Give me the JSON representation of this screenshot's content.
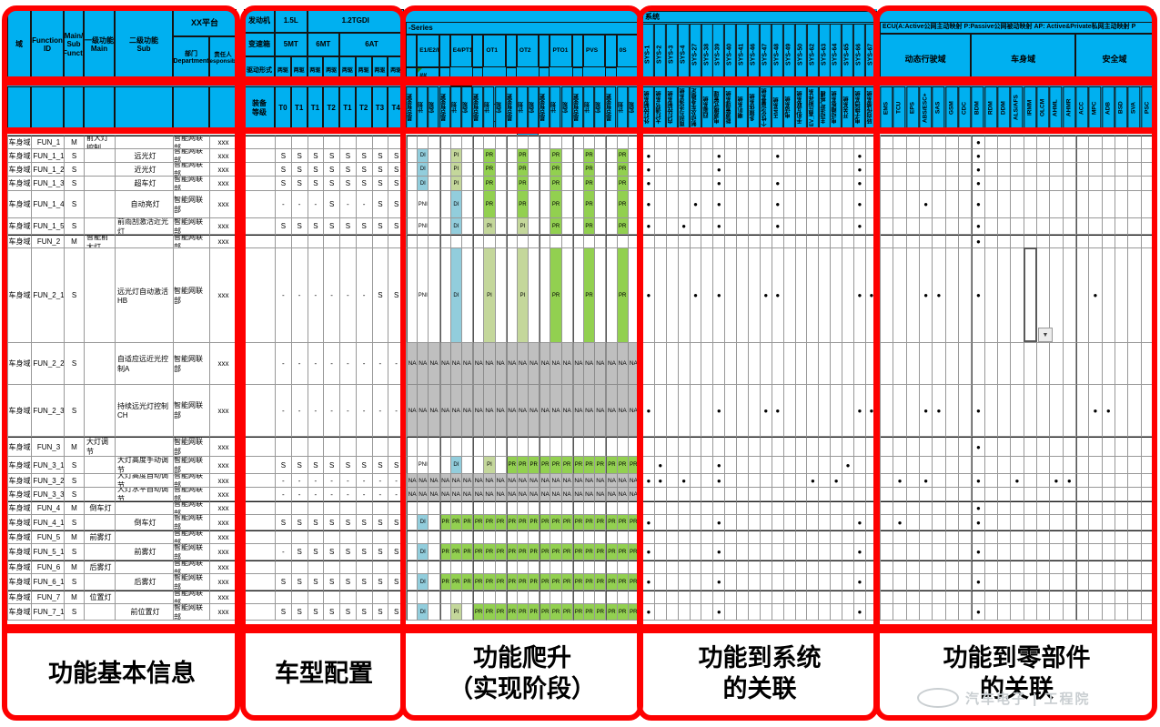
{
  "colors": {
    "header_blue": "#00B0F0",
    "frame_red": "#FE0000",
    "stage_di": "#92CDDC",
    "stage_pi": "#C4D79B",
    "stage_pr": "#92D050",
    "na_gray": "#BFBFBF"
  },
  "bottom_labels": [
    "功能基本信息",
    "车型配置",
    "功能爬升\n（实现阶段）",
    "功能到系统\n的关联",
    "功能到零部件\n的关联"
  ],
  "watermark": {
    "text": "汽车电子 | 工程院"
  },
  "defaults": {
    "domain": "车身域",
    "dept": "智能网联部",
    "resp": "xxx"
  },
  "sec1": {
    "headers": {
      "domain": "域",
      "function_id": "Function\nID",
      "main_sub": "Main/\nSub\nFuncti",
      "main": "一级功能\nMain",
      "sub": "二级功能\nSub",
      "platform": "XX平台",
      "dept": "部门\nDepartment",
      "resp": "责任人\nResponsible"
    }
  },
  "sec2": {
    "engine_label": "发动机",
    "engines": [
      {
        "label": "1.5L",
        "span": 2
      },
      {
        "label": "1.2TGDI",
        "span": 6
      }
    ],
    "trans_label": "变速箱",
    "trans": [
      {
        "label": "5MT",
        "span": 2
      },
      {
        "label": "6MT",
        "span": 2
      },
      {
        "label": "6AT",
        "span": 4
      }
    ],
    "drive_label": "驱动形式",
    "drives": [
      "两驱",
      "两驱",
      "两驱",
      "两驱",
      "两驱",
      "两驱",
      "两驱",
      "两驱"
    ],
    "level_label": "装备\n等级",
    "levels": [
      "T0",
      "T1",
      "T1",
      "T2",
      "T1",
      "T2",
      "T3",
      "T4"
    ]
  },
  "sec3": {
    "series": "-Series",
    "models": [
      "E1/E2/E3",
      "E4/PT1",
      "OT1",
      "OT2",
      "PTO1",
      "PVS",
      "0S"
    ],
    "hash": [
      "##",
      "##",
      "#",
      "##",
      "##",
      "##",
      "##"
    ],
    "subcols": [
      "是否有变更",
      "计划",
      "实现"
    ]
  },
  "sec4": {
    "title": "系统",
    "systems": [
      {
        "id": "SYS-1",
        "name": "外灯控制系统"
      },
      {
        "id": "SYS-2",
        "name": "大灯调节系统"
      },
      {
        "id": "SYS-3",
        "name": "内灯控制系统"
      },
      {
        "id": "SYS-4",
        "name": "雨刮与洗涤系统"
      },
      {
        "id": "SYS-27",
        "name": "制动及车身稳定"
      },
      {
        "id": "SYS-38",
        "name": "四驱系统"
      },
      {
        "id": "SYS-39",
        "name": "电源模式管理"
      },
      {
        "id": "SYS-40",
        "name": "能源管理系统"
      },
      {
        "id": "SYS-41",
        "name": "喇叭系统"
      },
      {
        "id": "SYS-46",
        "name": "多媒体系统"
      },
      {
        "id": "SYS-47",
        "name": "个性化设置系统"
      },
      {
        "id": "SYS-48",
        "name": "HMI系统"
      },
      {
        "id": "SYS-49",
        "name": "电话系统"
      },
      {
        "id": "SYS-50",
        "name": "手机互联系统"
      },
      {
        "id": "SYS-62",
        "name": "EV_高压附件系"
      },
      {
        "id": "SYS-63",
        "name": "主动进气格栅"
      },
      {
        "id": "SYS-64",
        "name": "电动踏板系统"
      },
      {
        "id": "SYS-65",
        "name": "开关系统"
      },
      {
        "id": "SYS-66",
        "name": "电子换挡系统"
      },
      {
        "id": "SYS-67",
        "name": "转向传感系统"
      }
    ]
  },
  "sec5": {
    "title": "ECU(A:Active公网主动映射  P:Passive公网被动映射   AP: Active&Private私网主动映射  P",
    "domains": [
      {
        "label": "动态行驶域",
        "ecus": [
          "EMS",
          "TCU",
          "EPS",
          "ABS/ESC+",
          "SAS",
          "GSM",
          "CDC"
        ]
      },
      {
        "label": "车身域",
        "ecus": [
          "BDM",
          "RDM",
          "DDM",
          "ALS/AFS",
          "IRMM",
          "OLCM",
          "AHML",
          "AHMR"
        ]
      },
      {
        "label": "安全域",
        "ecus": [
          "ACC",
          "MPC",
          "ADB",
          "BSD",
          "SVA",
          "PSC"
        ]
      }
    ]
  },
  "selection": {
    "row_id": "FUN_2_1",
    "ecu": "IRMM"
  },
  "rows": [
    {
      "id": "FUN_1",
      "ms": "M",
      "main": "前大灯控制",
      "sub": "",
      "cfg": [
        "",
        "",
        "",
        "",
        "",
        "",
        "",
        ""
      ],
      "st": [
        "",
        "",
        "",
        "",
        "",
        "",
        "",
        "",
        "",
        "",
        "",
        "",
        "",
        "",
        "",
        "",
        "",
        "",
        "",
        "",
        ""
      ],
      "sys": [],
      "ecu": [
        "BDM"
      ]
    },
    {
      "id": "FUN_1_1",
      "ms": "S",
      "main": "",
      "sub": "远光灯",
      "cfg": [
        "S",
        "S",
        "S",
        "S",
        "S",
        "S",
        "S",
        "S"
      ],
      "st": [
        "",
        "DI",
        "",
        "",
        "PI",
        "",
        "",
        "PR",
        "",
        "",
        "PR",
        "",
        "",
        "PR",
        "",
        "",
        "PR",
        "",
        "",
        "PR",
        ""
      ],
      "sys": [
        "SYS-1",
        "SYS-39",
        "SYS-48",
        "SYS-66"
      ],
      "ecu": [
        "BDM"
      ]
    },
    {
      "id": "FUN_1_2",
      "ms": "S",
      "main": "",
      "sub": "近光灯",
      "cfg": [
        "S",
        "S",
        "S",
        "S",
        "S",
        "S",
        "S",
        "S"
      ],
      "st": [
        "",
        "DI",
        "",
        "",
        "PI",
        "",
        "",
        "PR",
        "",
        "",
        "PR",
        "",
        "",
        "PR",
        "",
        "",
        "PR",
        "",
        "",
        "PR",
        ""
      ],
      "sys": [
        "SYS-1",
        "SYS-39",
        "SYS-66"
      ],
      "ecu": [
        "BDM"
      ]
    },
    {
      "id": "FUN_1_3",
      "ms": "S",
      "main": "",
      "sub": "超车灯",
      "cfg": [
        "S",
        "S",
        "S",
        "S",
        "S",
        "S",
        "S",
        "S"
      ],
      "st": [
        "",
        "DI",
        "",
        "",
        "PI",
        "",
        "",
        "PR",
        "",
        "",
        "PR",
        "",
        "",
        "PR",
        "",
        "",
        "PR",
        "",
        "",
        "PR",
        ""
      ],
      "sys": [
        "SYS-1",
        "SYS-39",
        "SYS-48",
        "SYS-66"
      ],
      "ecu": [
        "BDM"
      ]
    },
    {
      "id": "FUN_1_4",
      "ms": "S",
      "main": "",
      "sub": "自动亮灯",
      "cfg": [
        "-",
        "-",
        "-",
        "S",
        "-",
        "-",
        "S",
        "S"
      ],
      "st": [
        "",
        "PNI",
        "",
        "",
        "DI",
        "",
        "",
        "PR",
        "",
        "",
        "PR",
        "",
        "",
        "PR",
        "",
        "",
        "PR",
        "",
        "",
        "PR",
        ""
      ],
      "sys": [
        "SYS-1",
        "SYS-27",
        "SYS-39",
        "SYS-48",
        "SYS-66"
      ],
      "ecu": [
        "ABS/ESC+",
        "BDM"
      ]
    },
    {
      "id": "FUN_1_5",
      "ms": "S",
      "main": "",
      "sub": "前雨刮激活近光灯",
      "cfg": [
        "S",
        "S",
        "S",
        "S",
        "S",
        "S",
        "S",
        "S"
      ],
      "st": [
        "",
        "PNI",
        "",
        "",
        "DI",
        "",
        "",
        "PI",
        "",
        "",
        "PI",
        "",
        "",
        "PR",
        "",
        "",
        "PR",
        "",
        "",
        "PR",
        ""
      ],
      "sys": [
        "SYS-1",
        "SYS-4",
        "SYS-39",
        "SYS-48",
        "SYS-66"
      ],
      "ecu": [
        "BDM"
      ]
    },
    {
      "id": "FUN_2",
      "ms": "M",
      "main": "智能前大灯",
      "sub": "",
      "cfg": [
        "",
        "",
        "",
        "",
        "",
        "",
        "",
        ""
      ],
      "st": [
        "",
        "",
        "",
        "",
        "",
        "",
        "",
        "",
        "",
        "",
        "",
        "",
        "",
        "",
        "",
        "",
        "",
        "",
        "",
        "",
        ""
      ],
      "sys": [],
      "ecu": [
        "BDM"
      ]
    },
    {
      "id": "FUN_2_1",
      "ms": "S",
      "main": "",
      "sub": "远光灯自动激活HB",
      "cfg": [
        "-",
        "-",
        "-",
        "-",
        "-",
        "-",
        "S",
        "S"
      ],
      "st": [
        "",
        "PNI",
        "",
        "",
        "DI",
        "",
        "",
        "PI",
        "",
        "",
        "PI",
        "",
        "",
        "PR",
        "",
        "",
        "PR",
        "",
        "",
        "PR",
        ""
      ],
      "sys": [
        "SYS-1",
        "SYS-27",
        "SYS-39",
        "SYS-47",
        "SYS-48",
        "SYS-66",
        "SYS-67"
      ],
      "ecu": [
        "ABS/ESC+",
        "SAS",
        "BDM",
        "MPC"
      ]
    },
    {
      "id": "FUN_2_2",
      "ms": "S",
      "main": "",
      "sub": "自适应远近光控制A",
      "cfg": [
        "-",
        "-",
        "-",
        "-",
        "-",
        "-",
        "-",
        "-"
      ],
      "st": [
        "NA",
        "NA",
        "NA",
        "NA",
        "NA",
        "NA",
        "NA",
        "NA",
        "NA",
        "NA",
        "NA",
        "NA",
        "NA",
        "NA",
        "NA",
        "NA",
        "NA",
        "NA",
        "NA",
        "NA",
        "NA"
      ],
      "sys": [],
      "ecu": []
    },
    {
      "id": "FUN_2_3",
      "ms": "S",
      "main": "",
      "sub": "持续远光灯控制CH",
      "cfg": [
        "-",
        "-",
        "-",
        "-",
        "-",
        "-",
        "-",
        "-"
      ],
      "st": [
        "NA",
        "NA",
        "NA",
        "NA",
        "NA",
        "NA",
        "NA",
        "NA",
        "NA",
        "NA",
        "NA",
        "NA",
        "NA",
        "NA",
        "NA",
        "NA",
        "NA",
        "NA",
        "NA",
        "NA",
        "NA"
      ],
      "sys": [
        "SYS-1",
        "SYS-39",
        "SYS-47",
        "SYS-48",
        "SYS-66",
        "SYS-67"
      ],
      "ecu": [
        "ABS/ESC+",
        "SAS",
        "BDM",
        "MPC",
        "ADB"
      ]
    },
    {
      "id": "FUN_3",
      "ms": "M",
      "main": "大灯调节",
      "sub": "",
      "cfg": [
        "",
        "",
        "",
        "",
        "",
        "",
        "",
        ""
      ],
      "st": [
        "",
        "",
        "",
        "",
        "",
        "",
        "",
        "",
        "",
        "",
        "",
        "",
        "",
        "",
        "",
        "",
        "",
        "",
        "",
        "",
        ""
      ],
      "sys": [],
      "ecu": [
        "BDM"
      ]
    },
    {
      "id": "FUN_3_1",
      "ms": "S",
      "main": "",
      "sub": "大灯高度手动调节",
      "cfg": [
        "S",
        "S",
        "S",
        "S",
        "S",
        "S",
        "S",
        "S"
      ],
      "st": [
        "",
        "PNI",
        "",
        "",
        "DI",
        "",
        "",
        "PI",
        "",
        "PR",
        "PR",
        "PR",
        "PR",
        "PR",
        "PR",
        "PR",
        "PR",
        "PR",
        "PR",
        "PR",
        "PR"
      ],
      "sys": [
        "SYS-2",
        "SYS-39",
        "SYS-65"
      ],
      "ecu": []
    },
    {
      "id": "FUN_3_2",
      "ms": "S",
      "main": "",
      "sub": "大灯高度自动调节",
      "cfg": [
        "-",
        "-",
        "-",
        "-",
        "-",
        "-",
        "-",
        "-"
      ],
      "st": [
        "NA",
        "NA",
        "NA",
        "NA",
        "NA",
        "NA",
        "NA",
        "NA",
        "NA",
        "NA",
        "NA",
        "NA",
        "NA",
        "NA",
        "NA",
        "NA",
        "NA",
        "NA",
        "NA",
        "NA",
        "NA"
      ],
      "sys": [
        "SYS-1",
        "SYS-2",
        "SYS-4",
        "SYS-39",
        "SYS-62",
        "SYS-64"
      ],
      "ecu": [
        "TCU",
        "ABS/ESC+",
        "BDM",
        "ALS/AFS",
        "AHML",
        "AHMR"
      ]
    },
    {
      "id": "FUN_3_3",
      "ms": "S",
      "main": "",
      "sub": "大灯水平自动调节",
      "cfg": [
        "-",
        "-",
        "-",
        "-",
        "-",
        "-",
        "-",
        "-"
      ],
      "st": [
        "NA",
        "NA",
        "NA",
        "NA",
        "NA",
        "NA",
        "NA",
        "NA",
        "NA",
        "NA",
        "NA",
        "NA",
        "NA",
        "NA",
        "NA",
        "NA",
        "NA",
        "NA",
        "NA",
        "NA",
        "NA"
      ],
      "sys": [],
      "ecu": []
    },
    {
      "id": "FUN_4",
      "ms": "M",
      "main": "倒车灯",
      "sub": "",
      "cfg": [
        "",
        "",
        "",
        "",
        "",
        "",
        "",
        ""
      ],
      "st": [
        "",
        "",
        "",
        "",
        "",
        "",
        "",
        "",
        "",
        "",
        "",
        "",
        "",
        "",
        "",
        "",
        "",
        "",
        "",
        "",
        ""
      ],
      "sys": [],
      "ecu": [
        "BDM"
      ]
    },
    {
      "id": "FUN_4_1",
      "ms": "S",
      "main": "",
      "sub": "倒车灯",
      "cfg": [
        "S",
        "S",
        "S",
        "S",
        "S",
        "S",
        "S",
        "S"
      ],
      "st": [
        "",
        "DI",
        "",
        "PR",
        "PR",
        "PR",
        "PR",
        "PR",
        "PR",
        "PR",
        "PR",
        "PR",
        "PR",
        "PR",
        "PR",
        "PR",
        "PR",
        "PR",
        "PR",
        "PR",
        "PR"
      ],
      "sys": [
        "SYS-1",
        "SYS-39",
        "SYS-66"
      ],
      "ecu": [
        "TCU",
        "BDM"
      ]
    },
    {
      "id": "FUN_5",
      "ms": "M",
      "main": "前雾灯",
      "sub": "",
      "cfg": [
        "",
        "",
        "",
        "",
        "",
        "",
        "",
        ""
      ],
      "st": [
        "",
        "",
        "",
        "",
        "",
        "",
        "",
        "",
        "",
        "",
        "",
        "",
        "",
        "",
        "",
        "",
        "",
        "",
        "",
        "",
        ""
      ],
      "sys": [],
      "ecu": []
    },
    {
      "id": "FUN_5_1",
      "ms": "S",
      "main": "",
      "sub": "前雾灯",
      "cfg": [
        "-",
        "S",
        "S",
        "S",
        "S",
        "S",
        "S",
        "S"
      ],
      "st": [
        "",
        "DI",
        "",
        "PR",
        "PR",
        "PR",
        "PR",
        "PR",
        "PR",
        "PR",
        "PR",
        "PR",
        "PR",
        "PR",
        "PR",
        "PR",
        "PR",
        "PR",
        "PR",
        "PR",
        "PR"
      ],
      "sys": [
        "SYS-1",
        "SYS-39",
        "SYS-66"
      ],
      "ecu": [
        "BDM"
      ]
    },
    {
      "id": "FUN_6",
      "ms": "M",
      "main": "后雾灯",
      "sub": "",
      "cfg": [
        "",
        "",
        "",
        "",
        "",
        "",
        "",
        ""
      ],
      "st": [
        "",
        "",
        "",
        "",
        "",
        "",
        "",
        "",
        "",
        "",
        "",
        "",
        "",
        "",
        "",
        "",
        "",
        "",
        "",
        "",
        ""
      ],
      "sys": [],
      "ecu": []
    },
    {
      "id": "FUN_6_1",
      "ms": "S",
      "main": "",
      "sub": "后雾灯",
      "cfg": [
        "S",
        "S",
        "S",
        "S",
        "S",
        "S",
        "S",
        "S"
      ],
      "st": [
        "",
        "DI",
        "",
        "PR",
        "PR",
        "PR",
        "PR",
        "PR",
        "PR",
        "PR",
        "PR",
        "PR",
        "PR",
        "PR",
        "PR",
        "PR",
        "PR",
        "PR",
        "PR",
        "PR",
        "PR"
      ],
      "sys": [
        "SYS-1",
        "SYS-39",
        "SYS-66"
      ],
      "ecu": [
        "BDM"
      ]
    },
    {
      "id": "FUN_7",
      "ms": "M",
      "main": "位置灯",
      "sub": "",
      "cfg": [
        "",
        "",
        "",
        "",
        "",
        "",
        "",
        ""
      ],
      "st": [
        "",
        "",
        "",
        "",
        "",
        "",
        "",
        "",
        "",
        "",
        "",
        "",
        "",
        "",
        "",
        "",
        "",
        "",
        "",
        "",
        ""
      ],
      "sys": [],
      "ecu": []
    },
    {
      "id": "FUN_7_1",
      "ms": "S",
      "main": "",
      "sub": "前位置灯",
      "cfg": [
        "S",
        "S",
        "S",
        "S",
        "S",
        "S",
        "S",
        "S"
      ],
      "st": [
        "",
        "DI",
        "",
        "",
        "PI",
        "",
        "PR",
        "PR",
        "PR",
        "PR",
        "PR",
        "PR",
        "PR",
        "PR",
        "PR",
        "PR",
        "PR",
        "PR",
        "PR",
        "PR",
        "PR"
      ],
      "sys": [
        "SYS-1",
        "SYS-39",
        "SYS-66"
      ],
      "ecu": [
        "BDM"
      ]
    }
  ]
}
